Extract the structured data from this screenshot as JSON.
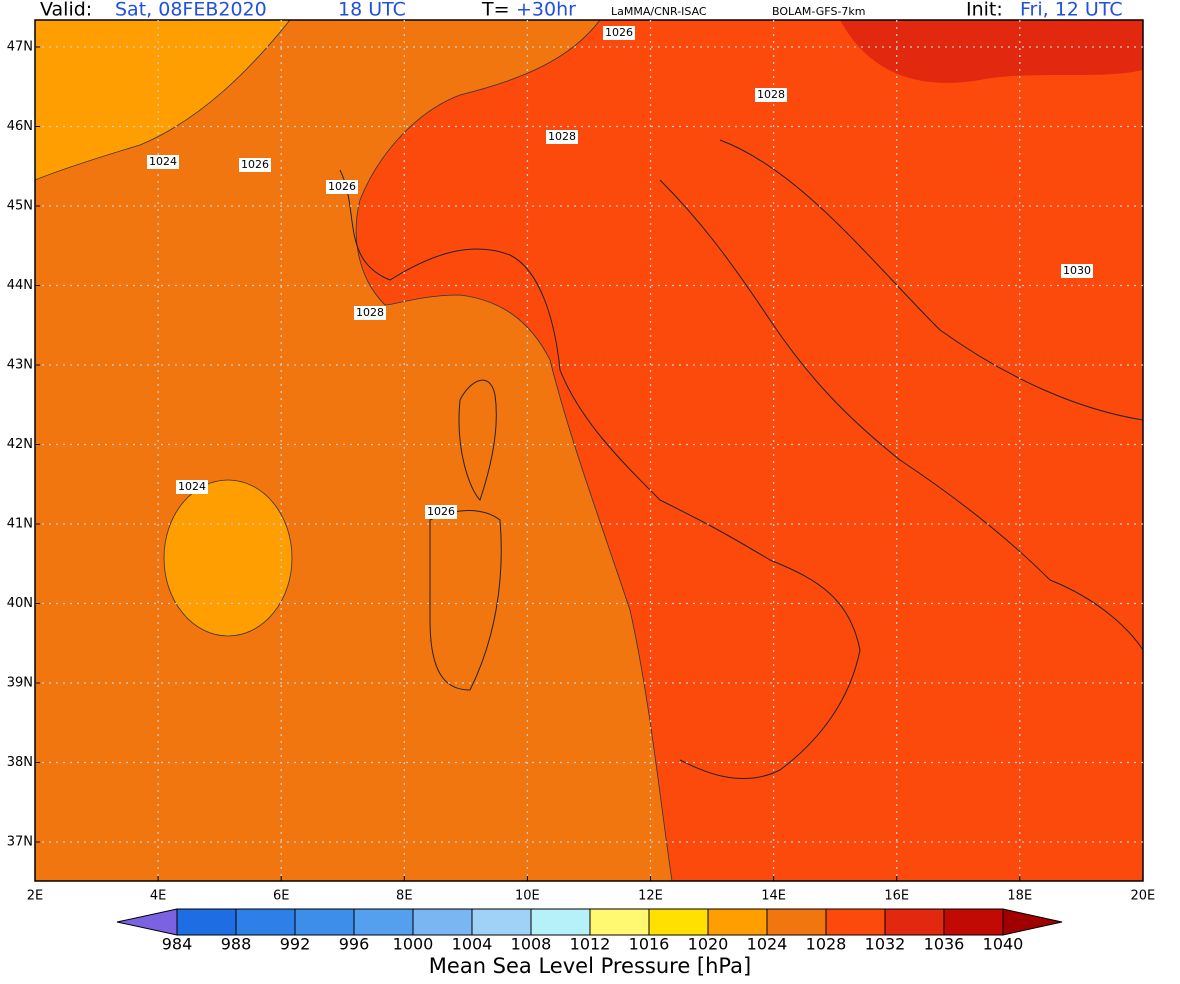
{
  "header": {
    "valid_label": "Valid:",
    "valid_date": "Sat, 08FEB2020",
    "valid_time": "18 UTC",
    "forecast_label": "T=",
    "forecast_value": "+30hr",
    "source": "LaMMA/CNR-ISAC",
    "model": "BOLAM-GFS-7km",
    "init_label": "Init:",
    "init_value": "Fri, 12 UTC"
  },
  "map": {
    "lat_ticks": [
      {
        "value": 47,
        "label": "47N"
      },
      {
        "value": 46,
        "label": "46N"
      },
      {
        "value": 45,
        "label": "45N"
      },
      {
        "value": 44,
        "label": "44N"
      },
      {
        "value": 43,
        "label": "43N"
      },
      {
        "value": 42,
        "label": "42N"
      },
      {
        "value": 41,
        "label": "41N"
      },
      {
        "value": 40,
        "label": "40N"
      },
      {
        "value": 39,
        "label": "39N"
      },
      {
        "value": 38,
        "label": "38N"
      },
      {
        "value": 37,
        "label": "37N"
      }
    ],
    "lon_ticks": [
      {
        "value": 2,
        "label": "2E"
      },
      {
        "value": 4,
        "label": "4E"
      },
      {
        "value": 6,
        "label": "6E"
      },
      {
        "value": 8,
        "label": "8E"
      },
      {
        "value": 10,
        "label": "10E"
      },
      {
        "value": 12,
        "label": "12E"
      },
      {
        "value": 14,
        "label": "14E"
      },
      {
        "value": 16,
        "label": "16E"
      },
      {
        "value": 18,
        "label": "18E"
      },
      {
        "value": 20,
        "label": "20E"
      }
    ],
    "contour_labels": [
      1026,
      1028,
      1028,
      1024,
      1026,
      1026,
      1030,
      1028,
      1024,
      1026
    ]
  },
  "colorbar": {
    "title": "Mean Sea Level Pressure [hPa]",
    "levels": [
      984,
      988,
      992,
      996,
      1000,
      1004,
      1008,
      1012,
      1016,
      1020,
      1024,
      1028,
      1032,
      1036,
      1040
    ],
    "colors": [
      "#7a62e0",
      "#1f6de3",
      "#2f7fe8",
      "#3d8eea",
      "#55a0ee",
      "#7ab6f2",
      "#9fd2f6",
      "#b6f0f8",
      "#fff870",
      "#ffe000",
      "#ff9e00",
      "#f2760f",
      "#fb4a0c",
      "#e2280f",
      "#c20a05",
      "#a00000"
    ]
  }
}
